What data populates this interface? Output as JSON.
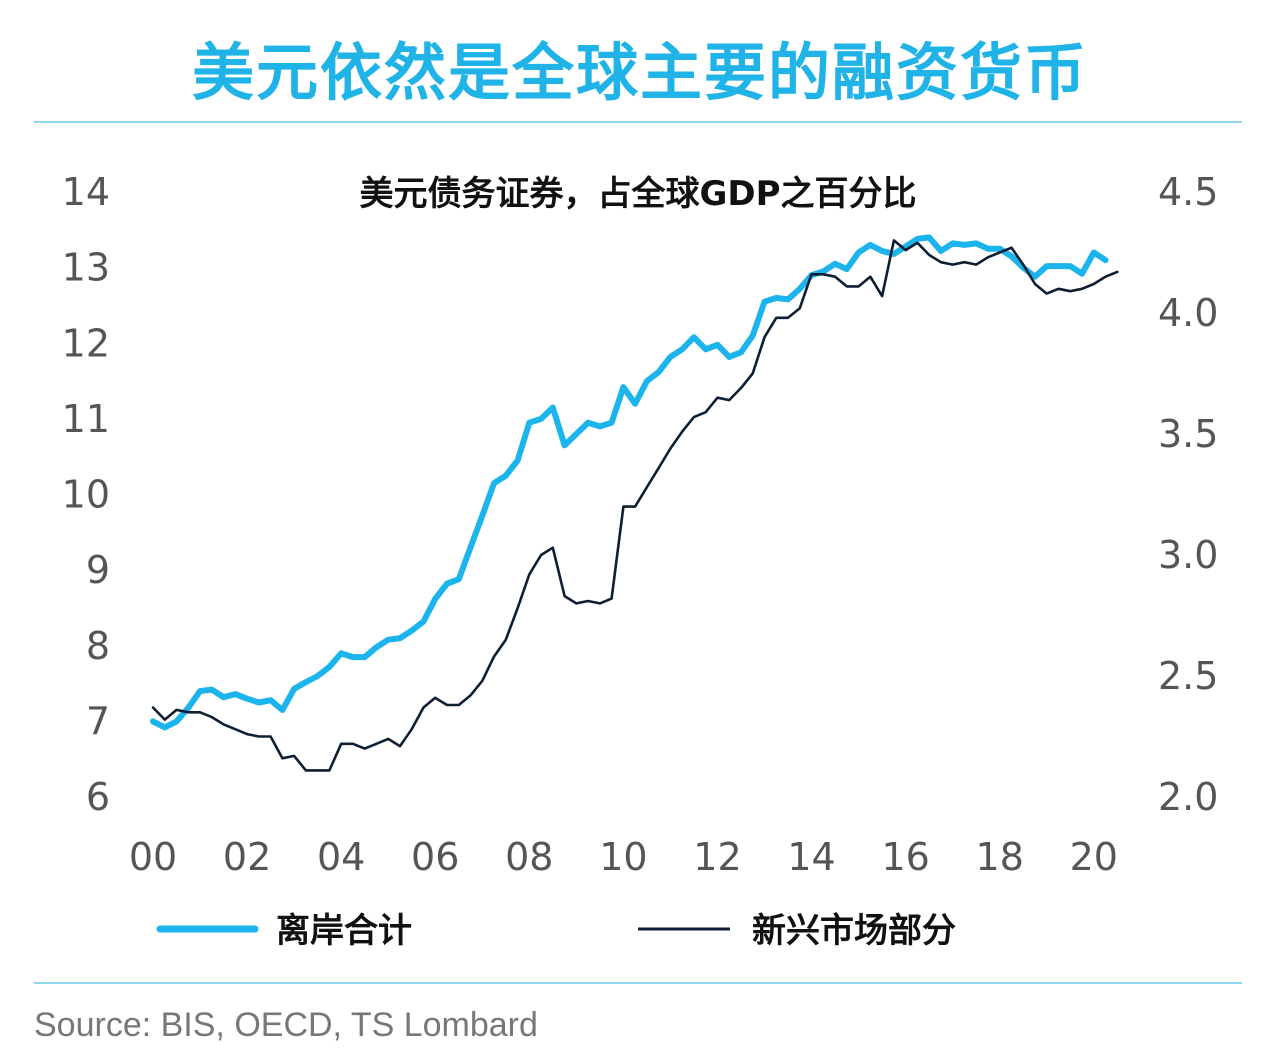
{
  "headline": "美元依然是全球主要的融资货币",
  "source": "Source: BIS, OECD, TS Lombard",
  "colors": {
    "offshore": "#1cb4ec",
    "emerging": "#0e1f33",
    "headline": "#1fb3e8",
    "axis_text": "#555555"
  },
  "chart_data": {
    "type": "line",
    "title": "美元债务证券，占全球GDP之百分比",
    "xlabel": "",
    "x_ticks": [
      "00",
      "02",
      "04",
      "06",
      "08",
      "10",
      "12",
      "14",
      "16",
      "18",
      "20"
    ],
    "xlim": [
      2000,
      2020.6
    ],
    "y_left": {
      "lim": [
        6,
        14
      ],
      "ticks": [
        "6",
        "7",
        "8",
        "9",
        "10",
        "11",
        "12",
        "13",
        "14"
      ]
    },
    "y_right": {
      "lim": [
        2.0,
        4.5
      ],
      "ticks": [
        "2.0",
        "2.5",
        "3.0",
        "3.5",
        "4.0",
        "4.5"
      ]
    },
    "legend_position": "bottom",
    "series": [
      {
        "name": "离岸合计",
        "axis": "left",
        "points": [
          [
            2000.0,
            7.0
          ],
          [
            2000.25,
            6.92
          ],
          [
            2000.5,
            7.0
          ],
          [
            2000.75,
            7.18
          ],
          [
            2001.0,
            7.4
          ],
          [
            2001.25,
            7.42
          ],
          [
            2001.5,
            7.32
          ],
          [
            2001.75,
            7.36
          ],
          [
            2002.0,
            7.3
          ],
          [
            2002.25,
            7.25
          ],
          [
            2002.5,
            7.28
          ],
          [
            2002.75,
            7.15
          ],
          [
            2003.0,
            7.43
          ],
          [
            2003.25,
            7.52
          ],
          [
            2003.5,
            7.6
          ],
          [
            2003.75,
            7.72
          ],
          [
            2004.0,
            7.9
          ],
          [
            2004.25,
            7.85
          ],
          [
            2004.5,
            7.85
          ],
          [
            2004.75,
            7.98
          ],
          [
            2005.0,
            8.08
          ],
          [
            2005.25,
            8.1
          ],
          [
            2005.5,
            8.2
          ],
          [
            2005.75,
            8.32
          ],
          [
            2006.0,
            8.62
          ],
          [
            2006.25,
            8.82
          ],
          [
            2006.5,
            8.88
          ],
          [
            2006.75,
            9.3
          ],
          [
            2007.0,
            9.72
          ],
          [
            2007.25,
            10.15
          ],
          [
            2007.5,
            10.25
          ],
          [
            2007.75,
            10.45
          ],
          [
            2008.0,
            10.95
          ],
          [
            2008.25,
            11.0
          ],
          [
            2008.5,
            11.15
          ],
          [
            2008.75,
            10.65
          ],
          [
            2009.0,
            10.8
          ],
          [
            2009.25,
            10.95
          ],
          [
            2009.5,
            10.9
          ],
          [
            2009.75,
            10.95
          ],
          [
            2010.0,
            11.42
          ],
          [
            2010.25,
            11.2
          ],
          [
            2010.5,
            11.5
          ],
          [
            2010.75,
            11.62
          ],
          [
            2011.0,
            11.82
          ],
          [
            2011.25,
            11.92
          ],
          [
            2011.5,
            12.08
          ],
          [
            2011.75,
            11.92
          ],
          [
            2012.0,
            11.98
          ],
          [
            2012.25,
            11.82
          ],
          [
            2012.5,
            11.88
          ],
          [
            2012.75,
            12.1
          ],
          [
            2013.0,
            12.55
          ],
          [
            2013.25,
            12.6
          ],
          [
            2013.5,
            12.58
          ],
          [
            2013.75,
            12.72
          ],
          [
            2014.0,
            12.9
          ],
          [
            2014.25,
            12.95
          ],
          [
            2014.5,
            13.05
          ],
          [
            2014.75,
            12.98
          ],
          [
            2015.0,
            13.2
          ],
          [
            2015.25,
            13.3
          ],
          [
            2015.5,
            13.22
          ],
          [
            2015.75,
            13.18
          ],
          [
            2016.0,
            13.28
          ],
          [
            2016.25,
            13.38
          ],
          [
            2016.5,
            13.4
          ],
          [
            2016.75,
            13.22
          ],
          [
            2017.0,
            13.32
          ],
          [
            2017.25,
            13.3
          ],
          [
            2017.5,
            13.32
          ],
          [
            2017.75,
            13.25
          ],
          [
            2018.0,
            13.25
          ],
          [
            2018.25,
            13.15
          ],
          [
            2018.5,
            13.0
          ],
          [
            2018.75,
            12.88
          ],
          [
            2019.0,
            13.02
          ],
          [
            2019.25,
            13.02
          ],
          [
            2019.5,
            13.02
          ],
          [
            2019.75,
            12.92
          ],
          [
            2020.0,
            13.2
          ],
          [
            2020.25,
            13.1
          ]
        ]
      },
      {
        "name": "新兴市场部分",
        "axis": "right",
        "points": [
          [
            2000.0,
            2.37
          ],
          [
            2000.25,
            2.32
          ],
          [
            2000.5,
            2.36
          ],
          [
            2000.75,
            2.35
          ],
          [
            2001.0,
            2.35
          ],
          [
            2001.25,
            2.33
          ],
          [
            2001.5,
            2.3
          ],
          [
            2001.75,
            2.28
          ],
          [
            2002.0,
            2.26
          ],
          [
            2002.25,
            2.25
          ],
          [
            2002.5,
            2.25
          ],
          [
            2002.75,
            2.16
          ],
          [
            2003.0,
            2.17
          ],
          [
            2003.25,
            2.11
          ],
          [
            2003.5,
            2.11
          ],
          [
            2003.75,
            2.11
          ],
          [
            2004.0,
            2.22
          ],
          [
            2004.25,
            2.22
          ],
          [
            2004.5,
            2.2
          ],
          [
            2004.75,
            2.22
          ],
          [
            2005.0,
            2.24
          ],
          [
            2005.25,
            2.21
          ],
          [
            2005.5,
            2.28
          ],
          [
            2005.75,
            2.37
          ],
          [
            2006.0,
            2.41
          ],
          [
            2006.25,
            2.38
          ],
          [
            2006.5,
            2.38
          ],
          [
            2006.75,
            2.42
          ],
          [
            2007.0,
            2.48
          ],
          [
            2007.25,
            2.58
          ],
          [
            2007.5,
            2.65
          ],
          [
            2007.75,
            2.78
          ],
          [
            2008.0,
            2.92
          ],
          [
            2008.25,
            3.0
          ],
          [
            2008.5,
            3.03
          ],
          [
            2008.75,
            2.83
          ],
          [
            2009.0,
            2.8
          ],
          [
            2009.25,
            2.81
          ],
          [
            2009.5,
            2.8
          ],
          [
            2009.75,
            2.82
          ],
          [
            2010.0,
            3.2
          ],
          [
            2010.25,
            3.2
          ],
          [
            2010.5,
            3.28
          ],
          [
            2010.75,
            3.36
          ],
          [
            2011.0,
            3.44
          ],
          [
            2011.25,
            3.51
          ],
          [
            2011.5,
            3.57
          ],
          [
            2011.75,
            3.59
          ],
          [
            2012.0,
            3.65
          ],
          [
            2012.25,
            3.64
          ],
          [
            2012.5,
            3.69
          ],
          [
            2012.75,
            3.75
          ],
          [
            2013.0,
            3.9
          ],
          [
            2013.25,
            3.98
          ],
          [
            2013.5,
            3.98
          ],
          [
            2013.75,
            4.02
          ],
          [
            2014.0,
            4.16
          ],
          [
            2014.25,
            4.16
          ],
          [
            2014.5,
            4.15
          ],
          [
            2014.75,
            4.11
          ],
          [
            2015.0,
            4.11
          ],
          [
            2015.25,
            4.15
          ],
          [
            2015.5,
            4.07
          ],
          [
            2015.75,
            4.3
          ],
          [
            2016.0,
            4.26
          ],
          [
            2016.25,
            4.29
          ],
          [
            2016.5,
            4.24
          ],
          [
            2016.75,
            4.21
          ],
          [
            2017.0,
            4.2
          ],
          [
            2017.25,
            4.21
          ],
          [
            2017.5,
            4.2
          ],
          [
            2017.75,
            4.23
          ],
          [
            2018.0,
            4.25
          ],
          [
            2018.25,
            4.27
          ],
          [
            2018.5,
            4.2
          ],
          [
            2018.75,
            4.12
          ],
          [
            2019.0,
            4.08
          ],
          [
            2019.25,
            4.1
          ],
          [
            2019.5,
            4.09
          ],
          [
            2019.75,
            4.1
          ],
          [
            2020.0,
            4.12
          ],
          [
            2020.25,
            4.15
          ],
          [
            2020.5,
            4.17
          ]
        ]
      }
    ]
  }
}
